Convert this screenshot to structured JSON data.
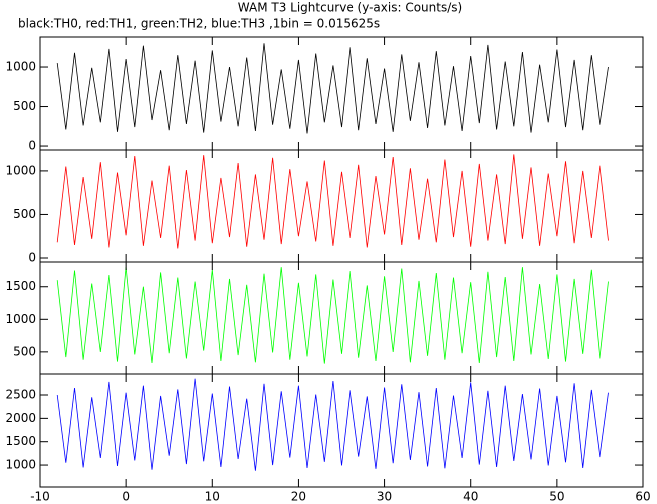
{
  "chart_data": [
    {
      "type": "line",
      "title": "WAM T3 Lightcurve (y-axis: Counts/s)",
      "subtitle": "black:TH0, red:TH1, green:TH2, blue:TH3 ,1bin = 0.015625s",
      "color": "#000000",
      "x": [
        -8,
        -7,
        -6,
        -5,
        -4,
        -3,
        -2,
        -1,
        0,
        1,
        2,
        3,
        4,
        5,
        6,
        7,
        8,
        9,
        10,
        11,
        12,
        13,
        14,
        15,
        16,
        17,
        18,
        19,
        20,
        21,
        22,
        23,
        24,
        25,
        26,
        27,
        28,
        29,
        30,
        31,
        32,
        33,
        34,
        35,
        36,
        37,
        38,
        39,
        40,
        41,
        42,
        43,
        44,
        45,
        46,
        47,
        48,
        49,
        50,
        51,
        52,
        53,
        54,
        55,
        56
      ],
      "values": [
        1050,
        210,
        1180,
        260,
        990,
        300,
        1230,
        180,
        1100,
        240,
        1270,
        330,
        960,
        200,
        1150,
        280,
        1080,
        170,
        1210,
        310,
        1000,
        250,
        1120,
        190,
        1300,
        270,
        970,
        220,
        1090,
        160,
        1170,
        300,
        1020,
        240,
        1250,
        200,
        1110,
        280,
        980,
        180,
        1160,
        320,
        1060,
        230,
        1200,
        260,
        1010,
        190,
        1140,
        290,
        1280,
        210,
        1070,
        250,
        1190,
        170,
        1030,
        300,
        1220,
        240,
        1090,
        200,
        1150,
        270,
        1000
      ],
      "xlim": [
        -10,
        60
      ],
      "ylim": [
        -50,
        1380
      ],
      "yticks": [
        0,
        500,
        1000
      ]
    },
    {
      "type": "line",
      "color": "#ff0000",
      "x": [
        -8,
        -7,
        -6,
        -5,
        -4,
        -3,
        -2,
        -1,
        0,
        1,
        2,
        3,
        4,
        5,
        6,
        7,
        8,
        9,
        10,
        11,
        12,
        13,
        14,
        15,
        16,
        17,
        18,
        19,
        20,
        21,
        22,
        23,
        24,
        25,
        26,
        27,
        28,
        29,
        30,
        31,
        32,
        33,
        34,
        35,
        36,
        37,
        38,
        39,
        40,
        41,
        42,
        43,
        44,
        45,
        46,
        47,
        48,
        49,
        50,
        51,
        52,
        53,
        54,
        55,
        56
      ],
      "values": [
        180,
        1050,
        150,
        930,
        220,
        1100,
        120,
        980,
        260,
        1170,
        140,
        890,
        230,
        1060,
        110,
        1010,
        200,
        1180,
        170,
        920,
        240,
        1090,
        130,
        960,
        210,
        1150,
        160,
        1020,
        250,
        880,
        190,
        1120,
        140,
        990,
        230,
        1070,
        120,
        940,
        270,
        1160,
        150,
        1030,
        210,
        910,
        180,
        1130,
        240,
        1000,
        130,
        1080,
        200,
        960,
        160,
        1190,
        220,
        1040,
        140,
        970,
        250,
        1110,
        170,
        1000,
        230,
        1060,
        200
      ],
      "xlim": [
        -10,
        60
      ],
      "ylim": [
        -46,
        1240
      ],
      "yticks": [
        0,
        500,
        1000
      ]
    },
    {
      "type": "line",
      "color": "#00ff00",
      "x": [
        -8,
        -7,
        -6,
        -5,
        -4,
        -3,
        -2,
        -1,
        0,
        1,
        2,
        3,
        4,
        5,
        6,
        7,
        8,
        9,
        10,
        11,
        12,
        13,
        14,
        15,
        16,
        17,
        18,
        19,
        20,
        21,
        22,
        23,
        24,
        25,
        26,
        27,
        28,
        29,
        30,
        31,
        32,
        33,
        34,
        35,
        36,
        37,
        38,
        39,
        40,
        41,
        42,
        43,
        44,
        45,
        46,
        47,
        48,
        49,
        50,
        51,
        52,
        53,
        54,
        55,
        56
      ],
      "values": [
        1600,
        420,
        1750,
        380,
        1550,
        500,
        1680,
        350,
        1800,
        460,
        1500,
        330,
        1720,
        480,
        1640,
        400,
        1580,
        520,
        1760,
        360,
        1620,
        450,
        1530,
        340,
        1700,
        490,
        1800,
        380,
        1560,
        430,
        1690,
        320,
        1610,
        470,
        1740,
        410,
        1520,
        360,
        1660,
        500,
        1780,
        340,
        1590,
        440,
        1710,
        380,
        1640,
        480,
        1570,
        330,
        1730,
        420,
        1650,
        360,
        1800,
        460,
        1540,
        390,
        1690,
        350,
        1620,
        470,
        1760,
        400,
        1580
      ],
      "xlim": [
        -10,
        60
      ],
      "ylim": [
        160,
        1880
      ],
      "yticks": [
        500,
        1000,
        1500
      ]
    },
    {
      "type": "line",
      "color": "#0000ff",
      "x": [
        -8,
        -7,
        -6,
        -5,
        -4,
        -3,
        -2,
        -1,
        0,
        1,
        2,
        3,
        4,
        5,
        6,
        7,
        8,
        9,
        10,
        11,
        12,
        13,
        14,
        15,
        16,
        17,
        18,
        19,
        20,
        21,
        22,
        23,
        24,
        25,
        26,
        27,
        28,
        29,
        30,
        31,
        32,
        33,
        34,
        35,
        36,
        37,
        38,
        39,
        40,
        41,
        42,
        43,
        44,
        45,
        46,
        47,
        48,
        49,
        50,
        51,
        52,
        53,
        54,
        55,
        56
      ],
      "values": [
        2500,
        1050,
        2650,
        950,
        2450,
        1150,
        2780,
        980,
        2550,
        1100,
        2700,
        900,
        2480,
        1200,
        2620,
        1020,
        2850,
        1080,
        2530,
        960,
        2680,
        1130,
        2420,
        880,
        2740,
        1000,
        2580,
        1160,
        2700,
        940,
        2510,
        1070,
        2800,
        990,
        2600,
        1180,
        2470,
        920,
        2660,
        1040,
        2730,
        1110,
        2560,
        970,
        2650,
        930,
        2490,
        1150,
        2770,
        1010,
        2590,
        960,
        2700,
        1090,
        2520,
        1120,
        2640,
        990,
        2480,
        1060,
        2750,
        940,
        2610,
        1170,
        2550
      ],
      "xlim": [
        -10,
        60
      ],
      "ylim": [
        530,
        2950
      ],
      "yticks": [
        1000,
        1500,
        2000,
        2500
      ],
      "xticks": [
        -10,
        0,
        10,
        20,
        30,
        40,
        50,
        60
      ]
    }
  ]
}
